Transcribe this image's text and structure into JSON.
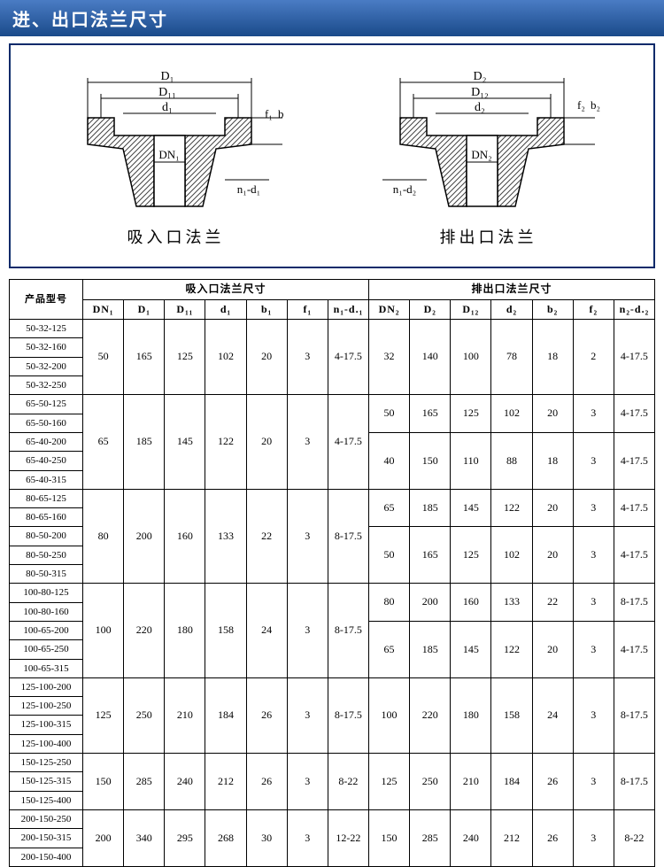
{
  "header": {
    "title": "进、出口法兰尺寸"
  },
  "diagrams": {
    "left": {
      "caption": "吸入口法兰",
      "labels": {
        "D": "D₁",
        "D1": "D₁₁",
        "d": "d₁",
        "DN": "DN₁",
        "nd": "n₁-d₁",
        "f": "f₁",
        "b": "b"
      }
    },
    "right": {
      "caption": "排出口法兰",
      "labels": {
        "D": "D₂",
        "D1": "D₁₂",
        "d": "d₂",
        "DN": "DN₂",
        "nd": "n₁-d₂",
        "f": "f₂",
        "b": "b₂"
      }
    }
  },
  "table": {
    "headers": {
      "product": "产品型号",
      "inlet_group": "吸入口法兰尺寸",
      "outlet_group": "排出口法兰尺寸",
      "inlet_cols": [
        "DN₁",
        "D₁",
        "D₁₁",
        "d₁",
        "b₁",
        "f₁",
        "n₁-d.₁"
      ],
      "outlet_cols": [
        "DN₂",
        "D₂",
        "D₁₂",
        "d₂",
        "b₂",
        "f₂",
        "n₂-d.₂"
      ]
    },
    "groups": [
      {
        "models": [
          "50-32-125",
          "50-32-160",
          "50-32-200",
          "50-32-250"
        ],
        "inlet": [
          "50",
          "165",
          "125",
          "102",
          "20",
          "3",
          "4-17.5"
        ],
        "outlets": [
          {
            "span": 4,
            "vals": [
              "32",
              "140",
              "100",
              "78",
              "18",
              "2",
              "4-17.5"
            ]
          }
        ]
      },
      {
        "models": [
          "65-50-125",
          "65-50-160",
          "65-40-200",
          "65-40-250",
          "65-40-315"
        ],
        "inlet": [
          "65",
          "185",
          "145",
          "122",
          "20",
          "3",
          "4-17.5"
        ],
        "outlets": [
          {
            "span": 2,
            "vals": [
              "50",
              "165",
              "125",
              "102",
              "20",
              "3",
              "4-17.5"
            ]
          },
          {
            "span": 3,
            "vals": [
              "40",
              "150",
              "110",
              "88",
              "18",
              "3",
              "4-17.5"
            ]
          }
        ]
      },
      {
        "models": [
          "80-65-125",
          "80-65-160",
          "80-50-200",
          "80-50-250",
          "80-50-315"
        ],
        "inlet": [
          "80",
          "200",
          "160",
          "133",
          "22",
          "3",
          "8-17.5"
        ],
        "outlets": [
          {
            "span": 2,
            "vals": [
              "65",
              "185",
              "145",
              "122",
              "20",
              "3",
              "4-17.5"
            ]
          },
          {
            "span": 3,
            "vals": [
              "50",
              "165",
              "125",
              "102",
              "20",
              "3",
              "4-17.5"
            ]
          }
        ]
      },
      {
        "models": [
          "100-80-125",
          "100-80-160",
          "100-65-200",
          "100-65-250",
          "100-65-315"
        ],
        "inlet": [
          "100",
          "220",
          "180",
          "158",
          "24",
          "3",
          "8-17.5"
        ],
        "outlets": [
          {
            "span": 2,
            "vals": [
              "80",
              "200",
              "160",
              "133",
              "22",
              "3",
              "8-17.5"
            ]
          },
          {
            "span": 3,
            "vals": [
              "65",
              "185",
              "145",
              "122",
              "20",
              "3",
              "4-17.5"
            ]
          }
        ]
      },
      {
        "models": [
          "125-100-200",
          "125-100-250",
          "125-100-315",
          "125-100-400"
        ],
        "inlet": [
          "125",
          "250",
          "210",
          "184",
          "26",
          "3",
          "8-17.5"
        ],
        "outlets": [
          {
            "span": 4,
            "vals": [
              "100",
              "220",
              "180",
              "158",
              "24",
              "3",
              "8-17.5"
            ]
          }
        ]
      },
      {
        "models": [
          "150-125-250",
          "150-125-315",
          "150-125-400"
        ],
        "inlet": [
          "150",
          "285",
          "240",
          "212",
          "26",
          "3",
          "8-22"
        ],
        "outlets": [
          {
            "span": 3,
            "vals": [
              "125",
              "250",
              "210",
              "184",
              "26",
              "3",
              "8-17.5"
            ]
          }
        ]
      },
      {
        "models": [
          "200-150-250",
          "200-150-315",
          "200-150-400"
        ],
        "inlet": [
          "200",
          "340",
          "295",
          "268",
          "30",
          "3",
          "12-22"
        ],
        "outlets": [
          {
            "span": 3,
            "vals": [
              "150",
              "285",
              "240",
              "212",
              "26",
              "3",
              "8-22"
            ]
          }
        ]
      }
    ]
  },
  "style": {
    "header_gradient_top": "#4a7cc4",
    "header_gradient_bottom": "#1a4a8a",
    "border_color": "#0a2a6a",
    "diagram_stroke": "#000000",
    "hatch_color": "#444444"
  }
}
